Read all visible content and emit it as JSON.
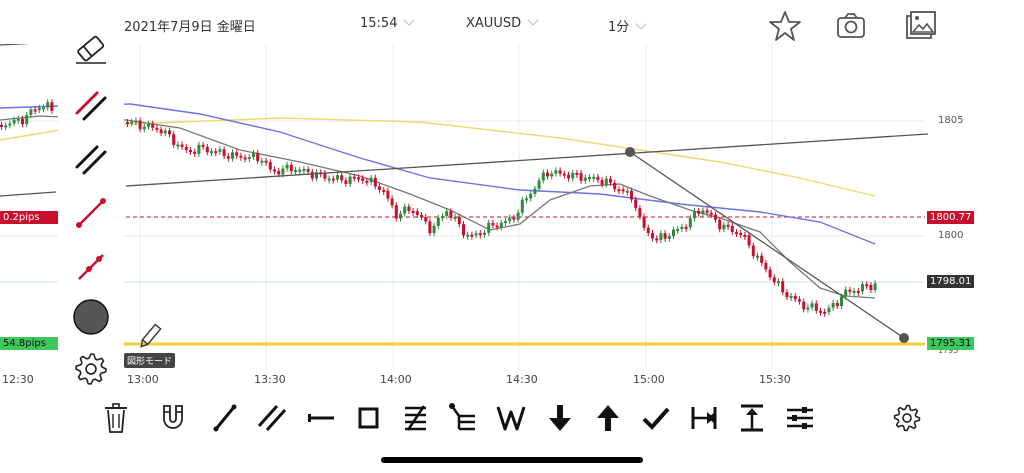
{
  "header": {
    "date": "2021年7月9日 金曜日",
    "time": "15:54",
    "symbol": "XAUUSD",
    "timeframe": "1分"
  },
  "toolbar_right": {
    "icons": [
      "star-icon",
      "camera-icon",
      "gallery-icon"
    ]
  },
  "price_axis": {
    "labels": [
      "1805",
      "1800",
      "1795"
    ]
  },
  "price_tags": {
    "upper_line": "1800.77",
    "current": "1798.01",
    "lower_line": "1795.31",
    "upper_pips": "0.2pips",
    "lower_pips": "54.8pips"
  },
  "time_axis": {
    "labels": [
      "12:30",
      "13:00",
      "13:30",
      "14:00",
      "14:30",
      "15:00",
      "15:30"
    ]
  },
  "drawing_tools": {
    "icons": [
      "eraser-icon",
      "parallel-lines-red-icon",
      "parallel-lines-black-icon",
      "line-segment-red-icon",
      "ray-red-icon",
      "color-circle-icon",
      "settings-icon"
    ],
    "mode_label": "図形モード"
  },
  "bottom_tools": {
    "icons": [
      "trash-icon",
      "magnet-icon",
      "trendline-icon",
      "parallel-channel-icon",
      "horizontal-line-icon",
      "rectangle-icon",
      "fibonacci-icon",
      "fib-fan-icon",
      "elliott-wave-icon",
      "arrow-down-icon",
      "arrow-up-icon",
      "check-icon",
      "range-horizontal-icon",
      "range-vertical-icon",
      "long-short-icon",
      "settings-icon"
    ]
  },
  "colors": {
    "up": "#2e8b3c",
    "down": "#c8102e",
    "ma_fast": "#777777",
    "ma_mid": "#6f6fe8",
    "ma_slow": "#f0d870",
    "upper_line": "#c8102e",
    "lower_line": "#f0d038",
    "pips_green": "#3cc85a"
  }
}
